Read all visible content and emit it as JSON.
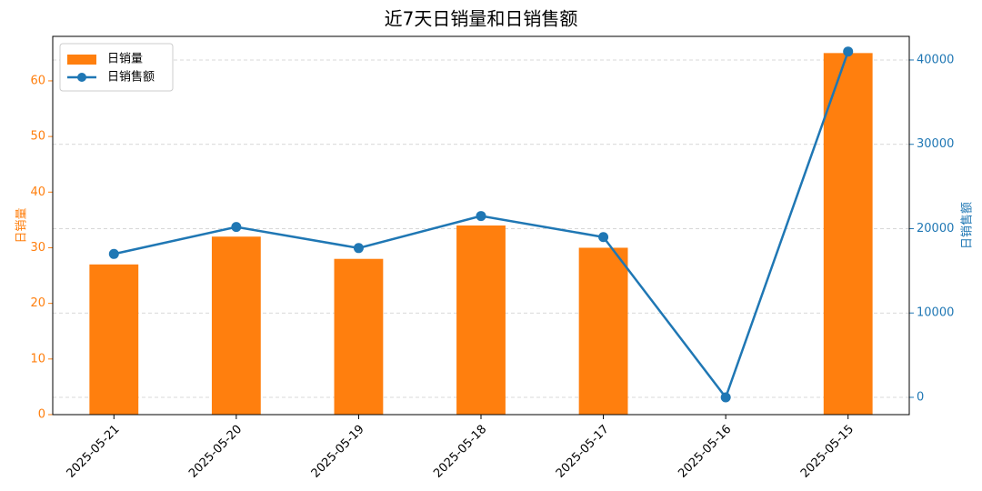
{
  "chart_data": {
    "type": "bar_line",
    "title": "近7天日销量和日销售额",
    "categories": [
      "2025-05-21",
      "2025-05-20",
      "2025-05-19",
      "2025-05-18",
      "2025-05-17",
      "2025-05-16",
      "2025-05-15"
    ],
    "series": [
      {
        "name": "日销量",
        "type": "bar",
        "color": "#ff7f0e",
        "values": [
          27,
          32,
          28,
          34,
          30,
          0,
          65
        ]
      },
      {
        "name": "日销售额",
        "type": "line",
        "axis": "y2",
        "color": "#1f77b4",
        "values": [
          17000,
          20200,
          17700,
          21500,
          19000,
          0,
          41000
        ]
      }
    ],
    "ylabel": "日销量",
    "y2label": "日销售额",
    "ylim": [
      0,
      68
    ],
    "yticks": [
      0,
      10,
      20,
      30,
      40,
      50,
      60
    ],
    "y2lim": [
      -2050,
      42800
    ],
    "y2ticks": [
      0,
      10000,
      20000,
      30000,
      40000
    ],
    "grid": true,
    "legend": "upper-left"
  }
}
